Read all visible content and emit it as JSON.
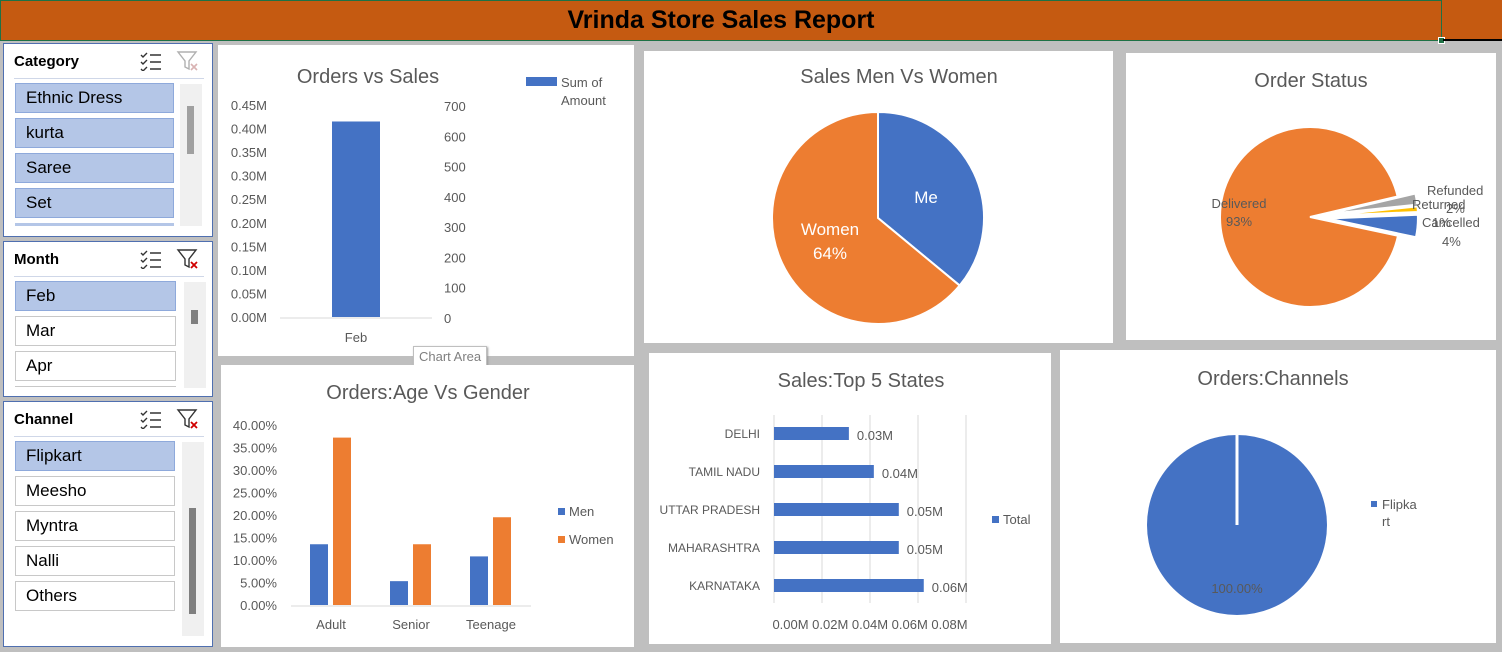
{
  "report_title": "Vrinda Store Sales Report",
  "slicers": {
    "category": {
      "title": "Category",
      "items": [
        "Ethnic Dress",
        "kurta",
        "Saree",
        "Set"
      ]
    },
    "month": {
      "title": "Month",
      "items": [
        "Feb",
        "Mar",
        "Apr"
      ]
    },
    "channel": {
      "title": "Channel",
      "items": [
        "Flipkart",
        "Meesho",
        "Myntra",
        "Nalli",
        "Others"
      ]
    }
  },
  "tooltip": "Chart Area",
  "chart_data": [
    {
      "type": "bar",
      "title": "Orders vs Sales",
      "categories": [
        "Feb"
      ],
      "series": [
        {
          "name": "Sum of Amount",
          "values": [
            0.415
          ]
        }
      ],
      "y_ticks_left": [
        "0.45M",
        "0.40M",
        "0.35M",
        "0.30M",
        "0.25M",
        "0.20M",
        "0.15M",
        "0.10M",
        "0.05M",
        "0.00M"
      ],
      "y_ticks_right": [
        "700",
        "600",
        "500",
        "400",
        "300",
        "200",
        "100",
        "0"
      ],
      "ylim": [
        0,
        0.45
      ],
      "legend": "top-right",
      "legend_lines": [
        "Sum of",
        "Amount"
      ]
    },
    {
      "type": "pie",
      "title": "Sales Men Vs Women",
      "slices": [
        {
          "label": "Me",
          "value": 36,
          "color": "#4472c4"
        },
        {
          "label": "Women",
          "value": 64,
          "color": "#ed7d31",
          "pct_text": "64%"
        }
      ]
    },
    {
      "type": "pie",
      "title": "Order Status",
      "slices": [
        {
          "label": "Delivered",
          "value": 93,
          "color": "#ed7d31",
          "pct_text": "93%"
        },
        {
          "label": "Refunded",
          "value": 2,
          "color": "#a5a5a5",
          "pct_text": "2%"
        },
        {
          "label": "Returned",
          "value": 1,
          "color": "#ffc000",
          "pct_text": "1%"
        },
        {
          "label": "Cancelled",
          "value": 4,
          "color": "#4472c4",
          "pct_text": "4%"
        }
      ]
    },
    {
      "type": "bar",
      "title": "Orders:Age Vs Gender",
      "categories": [
        "Adult",
        "Senior",
        "Teenage"
      ],
      "series": [
        {
          "name": "Men",
          "values": [
            13.5,
            5.3,
            10.8
          ],
          "color": "#4472c4"
        },
        {
          "name": "Women",
          "values": [
            37.2,
            13.5,
            19.5
          ],
          "color": "#ed7d31"
        }
      ],
      "y_ticks": [
        "40.00%",
        "35.00%",
        "30.00%",
        "25.00%",
        "20.00%",
        "15.00%",
        "10.00%",
        "5.00%",
        "0.00%"
      ],
      "ylim": [
        0,
        40
      ],
      "legend": "right"
    },
    {
      "type": "bar",
      "title": "Sales:Top 5 States",
      "orientation": "horizontal",
      "categories": [
        "DELHI",
        "TAMIL NADU",
        "UTTAR PRADESH",
        "MAHARASHTRA",
        "KARNATAKA"
      ],
      "series": [
        {
          "name": "Total",
          "values": [
            0.03,
            0.04,
            0.05,
            0.05,
            0.06
          ]
        }
      ],
      "data_labels": [
        "0.03M",
        "0.04M",
        "0.05M",
        "0.05M",
        "0.06M"
      ],
      "x_ticks": [
        "0.00M",
        "0.02M",
        "0.04M",
        "0.06M",
        "0.08M"
      ],
      "xlim": [
        0,
        0.08
      ],
      "legend": "right"
    },
    {
      "type": "pie",
      "title": "Orders:Channels",
      "slices": [
        {
          "label": "Flipkart",
          "value": 100,
          "color": "#4472c4",
          "pct_text": "100.00%"
        }
      ],
      "legend": "right",
      "legend_lines": [
        "Flipka",
        "rt"
      ]
    }
  ]
}
